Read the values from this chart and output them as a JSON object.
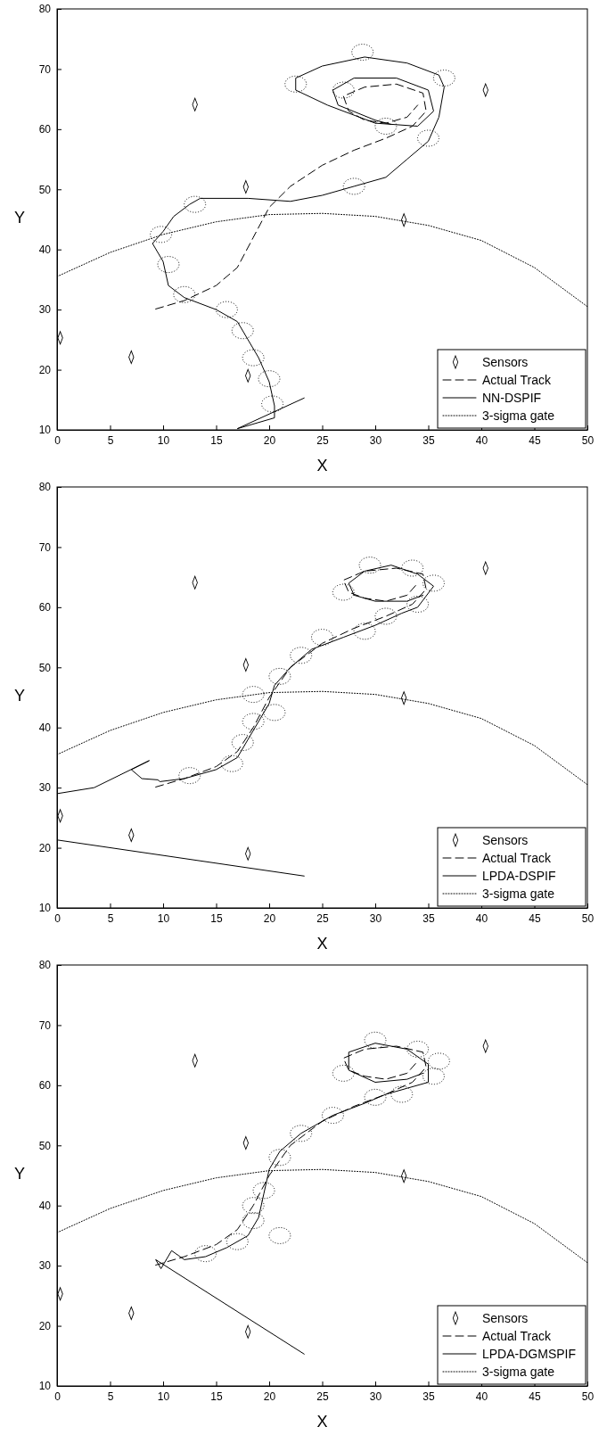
{
  "chart_data": [
    {
      "type": "line",
      "xlabel": "X",
      "ylabel": "Y",
      "xlim": [
        0,
        50
      ],
      "ylim": [
        10,
        80
      ],
      "xticks": [
        0,
        5,
        10,
        15,
        20,
        25,
        30,
        35,
        40,
        45,
        50
      ],
      "yticks": [
        10,
        20,
        30,
        40,
        50,
        60,
        70,
        80
      ],
      "legend": "bottom right",
      "grid": false,
      "series": [
        {
          "name": "Sensors",
          "type": "scatter",
          "marker": "diamond",
          "color": "#000000",
          "x": [
            0.3,
            7,
            13,
            17.8,
            18,
            32.7,
            40.4
          ],
          "values": [
            25.3,
            22.1,
            64.1,
            50.4,
            19,
            44.9,
            66.5
          ]
        },
        {
          "name": "Actual Track",
          "type": "line",
          "line_style": "dashed",
          "color": "#000000",
          "x": [
            9.3,
            12,
            15,
            17,
            18.5,
            20,
            22,
            25,
            28,
            31,
            33.5,
            34.8,
            34.5,
            32,
            29,
            27,
            27.5,
            29,
            31,
            33,
            34
          ],
          "values": [
            30.1,
            31.5,
            34,
            37,
            42,
            47,
            50.5,
            54,
            56.5,
            58.5,
            60.5,
            63,
            66,
            67.5,
            67,
            65.5,
            63,
            61.5,
            61,
            62,
            64
          ]
        },
        {
          "name": "NN-DSPIF",
          "type": "line",
          "line_style": "solid",
          "color": "#000000",
          "x": [
            23.3,
            17,
            20.5,
            20.5,
            20,
            19,
            18,
            17,
            15,
            12,
            10.5,
            10,
            9,
            10,
            11,
            12.5,
            13.5,
            18,
            22,
            25,
            28,
            31,
            33,
            35,
            36,
            36.5,
            36,
            33,
            29,
            25,
            22.5,
            22.5,
            25.5,
            30,
            34,
            35.5,
            35,
            32,
            28,
            26,
            26.5,
            30,
            31.5
          ],
          "values": [
            15.3,
            10.2,
            12,
            14,
            18,
            22,
            25,
            28,
            30,
            32,
            34,
            38,
            41,
            43,
            45.5,
            47.5,
            48.5,
            48.5,
            48,
            49,
            50.5,
            52,
            55,
            58,
            62,
            67,
            69,
            71,
            72,
            70.5,
            68.5,
            66.5,
            64,
            61,
            60.5,
            63,
            66.5,
            68.5,
            68.5,
            66.5,
            64,
            61.5,
            60.8
          ]
        },
        {
          "name": "3-sigma gate",
          "type": "line",
          "line_style": "dotted",
          "color": "#000000",
          "x": [
            0,
            5,
            10,
            15,
            20,
            25,
            30,
            35,
            40,
            45,
            50
          ],
          "values": [
            35.5,
            39.5,
            42.5,
            44.6,
            45.8,
            46,
            45.5,
            44,
            41.5,
            37,
            30.5
          ]
        },
        {
          "type": "scatter",
          "marker": "circle",
          "line_style": "dotted",
          "color": "#000000",
          "x": [
            13,
            9.8,
            10.5,
            12,
            16,
            17.5,
            18.5,
            20,
            20.3,
            28,
            35,
            36.5,
            28.8,
            22.5,
            27,
            31
          ],
          "values": [
            47.5,
            42.5,
            37.5,
            32.5,
            30,
            26.5,
            22,
            18.5,
            14.3,
            50.5,
            58.5,
            68.5,
            72.8,
            67.5,
            66.5,
            60.5
          ]
        }
      ]
    },
    {
      "type": "line",
      "xlabel": "X",
      "ylabel": "Y",
      "xlim": [
        0,
        50
      ],
      "ylim": [
        10,
        80
      ],
      "xticks": [
        0,
        5,
        10,
        15,
        20,
        25,
        30,
        35,
        40,
        45,
        50
      ],
      "yticks": [
        10,
        20,
        30,
        40,
        50,
        60,
        70,
        80
      ],
      "legend": "bottom right",
      "grid": false,
      "series": [
        {
          "name": "Sensors",
          "type": "scatter",
          "marker": "diamond",
          "color": "#000000",
          "x": [
            0.3,
            7,
            13,
            17.8,
            18,
            32.7,
            40.4
          ],
          "values": [
            25.3,
            22.1,
            64.1,
            50.4,
            19,
            44.9,
            66.5
          ]
        },
        {
          "name": "Actual Track",
          "type": "line",
          "line_style": "dashed",
          "color": "#000000",
          "x": [
            9.3,
            12,
            15,
            17,
            18.5,
            20,
            22,
            25,
            28,
            31,
            33.5,
            34.8,
            34.5,
            32,
            29,
            27,
            27.5,
            29,
            31,
            33,
            34
          ],
          "values": [
            30.1,
            31.5,
            33.5,
            36,
            40,
            45,
            50,
            54,
            56.5,
            58.5,
            60.5,
            63,
            65.5,
            66.5,
            66,
            64.5,
            62.5,
            61.5,
            61,
            62,
            64
          ]
        },
        {
          "name": "LPDA-DSPIF",
          "type": "line",
          "line_style": "solid",
          "color": "#000000",
          "x": [
            23.3,
            0,
            null,
            0,
            3.5,
            8.7,
            7,
            8,
            9.5,
            9.7,
            12,
            15,
            17,
            18,
            19,
            20,
            20.5,
            22,
            24,
            27,
            30,
            32.5,
            34,
            35.5,
            34,
            31.5,
            29,
            27.5,
            28,
            30,
            33,
            34.5
          ],
          "values": [
            15.3,
            21.3,
            null,
            29,
            30,
            34.5,
            33,
            31.5,
            31.3,
            31,
            31.5,
            33,
            35,
            38,
            41,
            44,
            47,
            50,
            53,
            55,
            57,
            59,
            60,
            63.5,
            65.5,
            67,
            66,
            64,
            62,
            61,
            61,
            62
          ]
        },
        {
          "name": "3-sigma gate",
          "type": "line",
          "line_style": "dotted",
          "color": "#000000",
          "x": [
            0,
            5,
            10,
            15,
            20,
            25,
            30,
            35,
            40,
            45,
            50
          ],
          "values": [
            35.5,
            39.5,
            42.5,
            44.6,
            45.8,
            46,
            45.5,
            44,
            41.5,
            37,
            30.5
          ]
        },
        {
          "type": "scatter",
          "marker": "circle",
          "line_style": "dotted",
          "color": "#000000",
          "x": [
            12.5,
            16.5,
            17.5,
            18.5,
            20.5,
            18.5,
            21,
            23,
            25,
            29,
            31,
            34,
            35.5,
            33.5,
            29.5,
            27
          ],
          "values": [
            32,
            34,
            37.5,
            41,
            42.5,
            45.5,
            48.5,
            52,
            55,
            56,
            58.5,
            60.5,
            64,
            66.5,
            67,
            62.5
          ]
        }
      ]
    },
    {
      "type": "line",
      "xlabel": "X",
      "ylabel": "Y",
      "xlim": [
        0,
        50
      ],
      "ylim": [
        10,
        80
      ],
      "xticks": [
        0,
        5,
        10,
        15,
        20,
        25,
        30,
        35,
        40,
        45,
        50
      ],
      "yticks": [
        10,
        20,
        30,
        40,
        50,
        60,
        70,
        80
      ],
      "legend": "bottom right",
      "grid": false,
      "series": [
        {
          "name": "Sensors",
          "type": "scatter",
          "marker": "diamond",
          "color": "#000000",
          "x": [
            0.3,
            7,
            13,
            17.8,
            18,
            32.7,
            40.4
          ],
          "values": [
            25.3,
            22.1,
            64.1,
            50.4,
            19,
            44.9,
            66.5
          ]
        },
        {
          "name": "Actual Track",
          "type": "line",
          "line_style": "dashed",
          "color": "#000000",
          "x": [
            9.3,
            12,
            15,
            17,
            18.5,
            20,
            22,
            25,
            28,
            31,
            33.5,
            34.8,
            34.5,
            32,
            29,
            27,
            27.5,
            29,
            31,
            33,
            34
          ],
          "values": [
            30.1,
            31.5,
            33.5,
            36,
            40,
            45,
            50,
            54,
            56.5,
            58.5,
            60.5,
            63,
            65.5,
            66.5,
            66,
            64.5,
            62.5,
            61.5,
            61,
            62,
            64
          ]
        },
        {
          "name": "LPDA-DGMSPIF",
          "type": "line",
          "line_style": "solid",
          "color": "#000000",
          "x": [
            23.3,
            9.3,
            9.8,
            10.8,
            12,
            14,
            16,
            18,
            19,
            19.5,
            20,
            21,
            23,
            26,
            29,
            31,
            33,
            35,
            35,
            33,
            30,
            27.5,
            27.5,
            30,
            33,
            34.5
          ],
          "values": [
            15.3,
            31,
            29.5,
            32.5,
            31,
            31.5,
            33,
            35,
            38,
            42,
            46,
            49,
            52,
            55,
            57,
            58.5,
            59.5,
            60.5,
            63.5,
            66,
            67,
            65.5,
            62.5,
            60.5,
            61,
            62
          ]
        },
        {
          "name": "3-sigma gate",
          "type": "line",
          "line_style": "dotted",
          "color": "#000000",
          "x": [
            0,
            5,
            10,
            15,
            20,
            25,
            30,
            35,
            40,
            45,
            50
          ],
          "values": [
            35.5,
            39.5,
            42.5,
            44.6,
            45.8,
            46,
            45.5,
            44,
            41.5,
            37,
            30.5
          ]
        },
        {
          "type": "scatter",
          "marker": "circle",
          "line_style": "dotted",
          "color": "#000000",
          "x": [
            14,
            17,
            18.5,
            18.5,
            19.5,
            21,
            21,
            23,
            26,
            30,
            32.5,
            35.5,
            36,
            30,
            27,
            34
          ],
          "values": [
            32,
            34,
            37.5,
            40,
            42.5,
            35,
            48,
            52,
            55,
            58,
            58.5,
            61.5,
            64,
            67.5,
            62,
            66
          ]
        }
      ]
    }
  ]
}
